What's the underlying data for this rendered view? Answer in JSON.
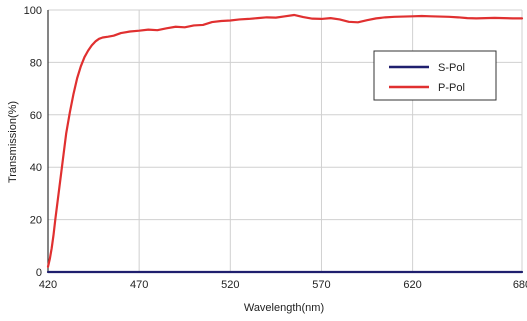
{
  "chart_data": {
    "type": "line",
    "title": "",
    "xlabel": "Wavelength(nm)",
    "ylabel": "Transmission(%)",
    "xlim": [
      420,
      680
    ],
    "ylim": [
      0,
      100
    ],
    "xticks": [
      420,
      470,
      520,
      570,
      620,
      680
    ],
    "yticks": [
      0,
      20,
      40,
      60,
      80,
      100
    ],
    "grid": true,
    "legend_position": "top-right",
    "series": [
      {
        "name": "S-Pol",
        "color": "#1f1f6e",
        "x": [
          420,
          680
        ],
        "y": [
          0,
          0
        ]
      },
      {
        "name": "P-Pol",
        "color": "#e03030",
        "x": [
          420,
          421,
          422,
          423,
          424,
          426,
          428,
          430,
          432,
          434,
          436,
          438,
          440,
          442,
          444,
          446,
          448,
          450,
          453,
          456,
          460,
          465,
          470,
          475,
          480,
          485,
          490,
          495,
          500,
          505,
          510,
          515,
          520,
          525,
          530,
          535,
          540,
          545,
          550,
          555,
          560,
          565,
          570,
          575,
          580,
          585,
          590,
          595,
          600,
          605,
          610,
          615,
          620,
          625,
          630,
          635,
          640,
          645,
          650,
          655,
          660,
          665,
          670,
          675,
          680
        ],
        "y": [
          2,
          5,
          9,
          14,
          20,
          31,
          42,
          53,
          61,
          68,
          74,
          78.5,
          82,
          84.5,
          86.5,
          88,
          89,
          89.5,
          89.8,
          90.2,
          91.2,
          91.8,
          92.1,
          92.5,
          92.3,
          93.0,
          93.6,
          93.4,
          94.1,
          94.3,
          95.4,
          95.8,
          96.0,
          96.4,
          96.6,
          96.9,
          97.2,
          97.1,
          97.6,
          98.1,
          97.3,
          96.7,
          96.6,
          96.9,
          96.4,
          95.5,
          95.3,
          96.1,
          96.8,
          97.2,
          97.4,
          97.5,
          97.6,
          97.7,
          97.6,
          97.5,
          97.4,
          97.2,
          96.9,
          96.8,
          96.9,
          97.0,
          96.9,
          96.8,
          96.8
        ]
      }
    ]
  }
}
